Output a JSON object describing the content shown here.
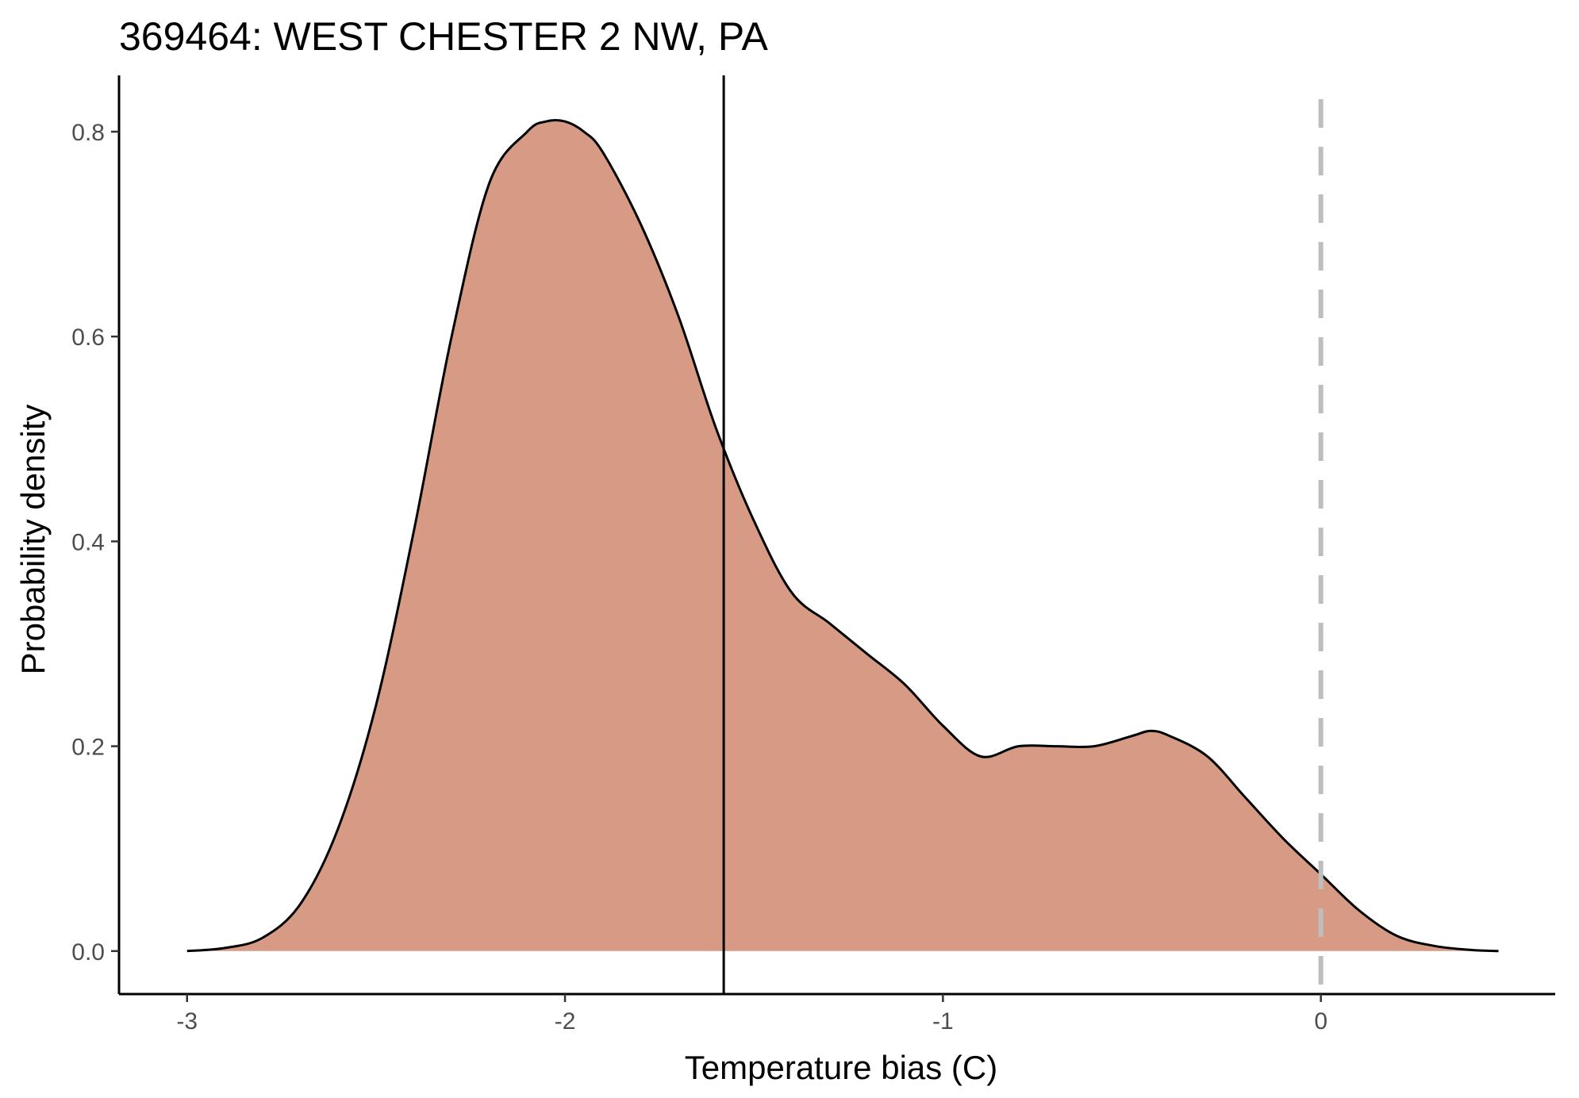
{
  "chart_data": {
    "type": "area",
    "title": "369464: WEST CHESTER 2 NW, PA",
    "xlabel": "Temperature bias (C)",
    "ylabel": "Probability density",
    "xlim": [
      -3.18,
      0.62
    ],
    "ylim": [
      -0.042,
      0.855
    ],
    "x_ticks": [
      {
        "value": -3,
        "label": "-3"
      },
      {
        "value": -2,
        "label": "-2"
      },
      {
        "value": -1,
        "label": "-1"
      },
      {
        "value": 0,
        "label": "0"
      }
    ],
    "y_ticks": [
      {
        "value": 0.0,
        "label": "0.0"
      },
      {
        "value": 0.2,
        "label": "0.2"
      },
      {
        "value": 0.4,
        "label": "0.4"
      },
      {
        "value": 0.6,
        "label": "0.6"
      },
      {
        "value": 0.8,
        "label": "0.8"
      }
    ],
    "grid": false,
    "fill_color": "#d69a85",
    "line_color": "#000000",
    "series": [
      {
        "x": [
          -3.0,
          -2.9,
          -2.8,
          -2.7,
          -2.6,
          -2.5,
          -2.4,
          -2.3,
          -2.2,
          -2.1,
          -2.05,
          -2.0,
          -1.95,
          -1.9,
          -1.8,
          -1.7,
          -1.6,
          -1.5,
          -1.4,
          -1.3,
          -1.2,
          -1.1,
          -1.0,
          -0.9,
          -0.8,
          -0.7,
          -0.6,
          -0.5,
          -0.45,
          -0.4,
          -0.3,
          -0.2,
          -0.1,
          0.0,
          0.1,
          0.2,
          0.3,
          0.4,
          0.47
        ],
        "y": [
          0.0,
          0.003,
          0.013,
          0.046,
          0.12,
          0.24,
          0.41,
          0.6,
          0.75,
          0.8,
          0.81,
          0.81,
          0.8,
          0.78,
          0.71,
          0.62,
          0.51,
          0.42,
          0.35,
          0.32,
          0.29,
          0.26,
          0.22,
          0.19,
          0.2,
          0.2,
          0.2,
          0.21,
          0.215,
          0.21,
          0.19,
          0.15,
          0.11,
          0.075,
          0.04,
          0.015,
          0.005,
          0.001,
          0.0
        ]
      }
    ],
    "annotations": [
      {
        "type": "vline",
        "x": -1.58,
        "style": "solid",
        "color": "#000000"
      },
      {
        "type": "vline",
        "x": 0.0,
        "style": "dashed",
        "color": "#bebebe"
      }
    ]
  }
}
